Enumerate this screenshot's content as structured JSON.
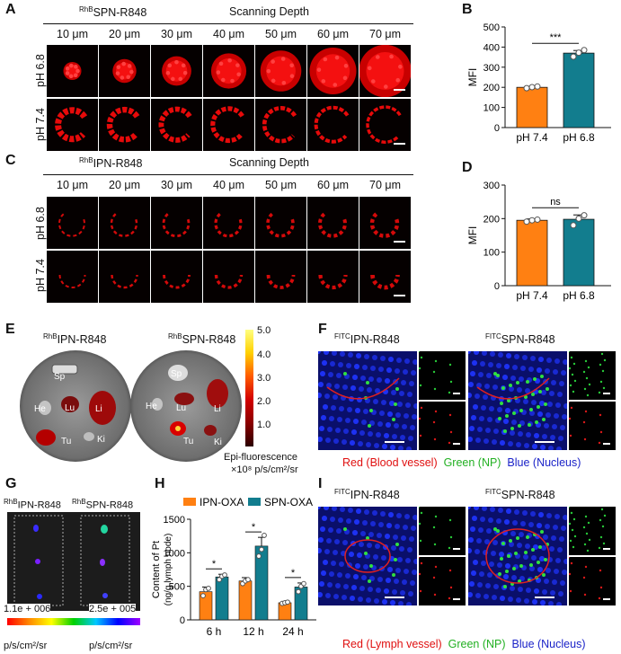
{
  "panels": {
    "A": "A",
    "B": "B",
    "C": "C",
    "D": "D",
    "E": "E",
    "F": "F",
    "G": "G",
    "H": "H",
    "I": "I"
  },
  "depths": [
    "10 μm",
    "20 μm",
    "30 μm",
    "40 μm",
    "50 μm",
    "60 μm",
    "70 μm"
  ],
  "panel_a": {
    "title_sup": "RhB",
    "title": "SPN-R848",
    "scan_label": "Scanning Depth",
    "rows": [
      "pH 6.8",
      "pH 7.4"
    ]
  },
  "panel_c": {
    "title_sup": "RhB",
    "title": "IPN-R848",
    "scan_label": "Scanning Depth",
    "rows": [
      "pH 6.8",
      "pH 7.4"
    ]
  },
  "panel_e": {
    "label1_sup": "RhB",
    "label1": "IPN-R848",
    "label2_sup": "RhB",
    "label2": "SPN-R848",
    "organs": [
      "Sp",
      "He",
      "Lu",
      "Li",
      "Tu",
      "Ki"
    ],
    "colorbar_ticks": [
      "5.0",
      "4.0",
      "3.0",
      "2.0",
      "1.0"
    ],
    "colorbar_title": "Epi-fluorescence",
    "colorbar_unit": "×10⁸ p/s/cm²/sr"
  },
  "panel_f": {
    "label1_sup": "FITC",
    "label1": "IPN-R848",
    "label2_sup": "FITC",
    "label2": "SPN-R848",
    "legend_red": "Red (Blood vessel)",
    "legend_green": "Green (NP)",
    "legend_blue": "Blue (Nucleus)"
  },
  "panel_g": {
    "label1_sup": "RhB",
    "label1": "IPN-R848",
    "label2_sup": "RhB",
    "label2": "SPN-R848",
    "min_val": "1.1e + 006",
    "max_val": "2.5e + 005",
    "unit_left": "p/s/cm²/sr",
    "unit_right": "p/s/cm²/sr"
  },
  "panel_i": {
    "label1_sup": "FITC",
    "label1": "IPN-R848",
    "label2_sup": "FITC",
    "label2": "SPN-R848",
    "legend_red": "Red (Lymph vessel)",
    "legend_green": "Green (NP)",
    "legend_blue": "Blue (Nucleus)"
  },
  "chart_data": [
    {
      "type": "bar",
      "panel": "B",
      "categories": [
        "pH 7.4",
        "pH 6.8"
      ],
      "values": [
        200,
        370
      ],
      "points": [
        [
          196,
          201,
          204
        ],
        [
          352,
          372,
          385
        ]
      ],
      "errors": [
        5,
        13
      ],
      "colors": [
        "#ff8012",
        "#127d8e"
      ],
      "ylabel": "MFI",
      "ylim": [
        0,
        500
      ],
      "yticks": [
        "0",
        "100",
        "200",
        "300",
        "400",
        "500"
      ],
      "significance": "***"
    },
    {
      "type": "bar",
      "panel": "D",
      "categories": [
        "pH 7.4",
        "pH 6.8"
      ],
      "values": [
        195,
        198
      ],
      "points": [
        [
          191,
          195,
          197
        ],
        [
          180,
          200,
          210
        ]
      ],
      "errors": [
        4,
        13
      ],
      "colors": [
        "#ff8012",
        "#127d8e"
      ],
      "ylabel": "MFI",
      "ylim": [
        0,
        300
      ],
      "yticks": [
        "0",
        "100",
        "200",
        "300"
      ],
      "significance": "ns"
    },
    {
      "type": "bar",
      "panel": "H",
      "categories": [
        "6 h",
        "12 h",
        "24 h"
      ],
      "series": [
        {
          "name": "IPN-OXA",
          "color": "#ff8012",
          "values": [
            420,
            580,
            255
          ],
          "errors": [
            70,
            50,
            20
          ],
          "points": [
            [
              360,
              450,
              470
            ],
            [
              540,
              580,
              600
            ],
            [
              245,
              255,
              265
            ]
          ]
        },
        {
          "name": "SPN-OXA",
          "color": "#127d8e",
          "values": [
            640,
            1100,
            490
          ],
          "errors": [
            40,
            130,
            60
          ],
          "points": [
            [
              600,
              650,
              670
            ],
            [
              950,
              1050,
              1260
            ],
            [
              420,
              500,
              540
            ]
          ]
        }
      ],
      "ylabel": "Content of Pt",
      "ylabel2": "(ng/g lymph node)",
      "ylim": [
        0,
        1500
      ],
      "yticks": [
        "0",
        "500",
        "1000",
        "1500"
      ],
      "significance": [
        "*",
        "*",
        "*"
      ]
    }
  ]
}
